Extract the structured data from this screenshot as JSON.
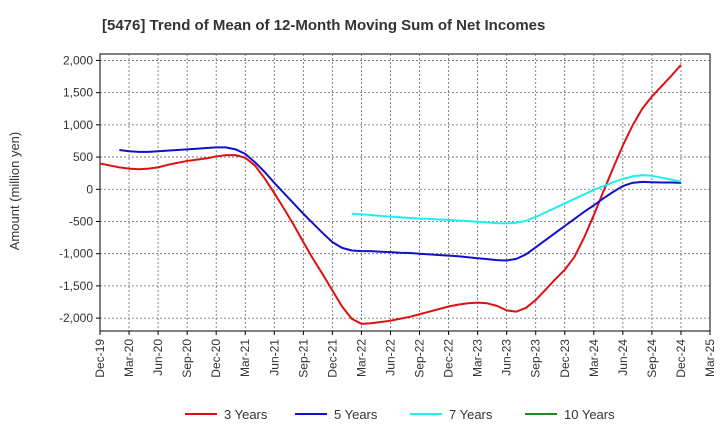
{
  "chart_data": {
    "type": "line",
    "title": "[5476]  Trend of Mean of 12-Month Moving Sum of Net Incomes",
    "ylabel": "Amount (million yen)",
    "xlabel": "",
    "ylim": [
      -2200,
      2100
    ],
    "yticks": [
      2000,
      1500,
      1000,
      500,
      0,
      -500,
      -1000,
      -1500,
      -2000
    ],
    "ytick_labels": [
      "2,000",
      "1,500",
      "1,000",
      "500",
      "0",
      "-500",
      "-1,000",
      "-1,500",
      "-2,000"
    ],
    "xtick_labels": [
      "Dec-19",
      "Mar-20",
      "Jun-20",
      "Sep-20",
      "Dec-20",
      "Mar-21",
      "Jun-21",
      "Sep-21",
      "Dec-21",
      "Mar-22",
      "Jun-22",
      "Sep-22",
      "Dec-22",
      "Mar-23",
      "Jun-23",
      "Sep-23",
      "Dec-23",
      "Mar-24",
      "Jun-24",
      "Sep-24",
      "Dec-24",
      "Mar-25"
    ],
    "grid": true,
    "legend_position": "bottom",
    "series": [
      {
        "name": "3 Years",
        "color": "#dd1111",
        "points": [
          [
            "Dec-19",
            400
          ],
          [
            "Jan-20",
            370
          ],
          [
            "Feb-20",
            340
          ],
          [
            "Mar-20",
            320
          ],
          [
            "Apr-20",
            310
          ],
          [
            "May-20",
            320
          ],
          [
            "Jun-20",
            340
          ],
          [
            "Jul-20",
            380
          ],
          [
            "Aug-20",
            410
          ],
          [
            "Sep-20",
            440
          ],
          [
            "Oct-20",
            460
          ],
          [
            "Nov-20",
            480
          ],
          [
            "Dec-20",
            510
          ],
          [
            "Jan-21",
            530
          ],
          [
            "Feb-21",
            530
          ],
          [
            "Mar-21",
            490
          ],
          [
            "Apr-21",
            370
          ],
          [
            "May-21",
            170
          ],
          [
            "Jun-21",
            -60
          ],
          [
            "Jul-21",
            -300
          ],
          [
            "Aug-21",
            -550
          ],
          [
            "Sep-21",
            -820
          ],
          [
            "Oct-21",
            -1080
          ],
          [
            "Nov-21",
            -1320
          ],
          [
            "Dec-21",
            -1570
          ],
          [
            "Jan-22",
            -1820
          ],
          [
            "Feb-22",
            -2010
          ],
          [
            "Mar-22",
            -2090
          ],
          [
            "Apr-22",
            -2080
          ],
          [
            "May-22",
            -2060
          ],
          [
            "Jun-22",
            -2040
          ],
          [
            "Jul-22",
            -2010
          ],
          [
            "Aug-22",
            -1980
          ],
          [
            "Sep-22",
            -1940
          ],
          [
            "Oct-22",
            -1900
          ],
          [
            "Nov-22",
            -1860
          ],
          [
            "Dec-22",
            -1820
          ],
          [
            "Jan-23",
            -1790
          ],
          [
            "Feb-23",
            -1770
          ],
          [
            "Mar-23",
            -1760
          ],
          [
            "Apr-23",
            -1770
          ],
          [
            "May-23",
            -1810
          ],
          [
            "Jun-23",
            -1880
          ],
          [
            "Jul-23",
            -1900
          ],
          [
            "Aug-23",
            -1840
          ],
          [
            "Sep-23",
            -1720
          ],
          [
            "Oct-23",
            -1560
          ],
          [
            "Nov-23",
            -1400
          ],
          [
            "Dec-23",
            -1250
          ],
          [
            "Jan-24",
            -1050
          ],
          [
            "Feb-24",
            -750
          ],
          [
            "Mar-24",
            -400
          ],
          [
            "Apr-24",
            -30
          ],
          [
            "May-24",
            330
          ],
          [
            "Jun-24",
            680
          ],
          [
            "Jul-24",
            990
          ],
          [
            "Aug-24",
            1250
          ],
          [
            "Sep-24",
            1440
          ],
          [
            "Oct-24",
            1600
          ],
          [
            "Nov-24",
            1760
          ],
          [
            "Dec-24",
            1930
          ]
        ]
      },
      {
        "name": "5 Years",
        "color": "#1111cc",
        "points": [
          [
            "Feb-20",
            610
          ],
          [
            "Mar-20",
            590
          ],
          [
            "Apr-20",
            580
          ],
          [
            "May-20",
            580
          ],
          [
            "Jun-20",
            590
          ],
          [
            "Jul-20",
            600
          ],
          [
            "Aug-20",
            610
          ],
          [
            "Sep-20",
            620
          ],
          [
            "Oct-20",
            630
          ],
          [
            "Nov-20",
            640
          ],
          [
            "Dec-20",
            650
          ],
          [
            "Jan-21",
            650
          ],
          [
            "Feb-21",
            620
          ],
          [
            "Mar-21",
            550
          ],
          [
            "Apr-21",
            420
          ],
          [
            "May-21",
            270
          ],
          [
            "Jun-21",
            100
          ],
          [
            "Jul-21",
            -60
          ],
          [
            "Aug-21",
            -220
          ],
          [
            "Sep-21",
            -380
          ],
          [
            "Oct-21",
            -530
          ],
          [
            "Nov-21",
            -680
          ],
          [
            "Dec-21",
            -820
          ],
          [
            "Jan-22",
            -910
          ],
          [
            "Feb-22",
            -950
          ],
          [
            "Mar-22",
            -960
          ],
          [
            "Apr-22",
            -960
          ],
          [
            "May-22",
            -970
          ],
          [
            "Jun-22",
            -975
          ],
          [
            "Jul-22",
            -985
          ],
          [
            "Aug-22",
            -990
          ],
          [
            "Sep-22",
            -1000
          ],
          [
            "Oct-22",
            -1010
          ],
          [
            "Nov-22",
            -1020
          ],
          [
            "Dec-22",
            -1030
          ],
          [
            "Jan-23",
            -1040
          ],
          [
            "Feb-23",
            -1055
          ],
          [
            "Mar-23",
            -1070
          ],
          [
            "Apr-23",
            -1085
          ],
          [
            "May-23",
            -1100
          ],
          [
            "Jun-23",
            -1105
          ],
          [
            "Jul-23",
            -1080
          ],
          [
            "Aug-23",
            -1010
          ],
          [
            "Sep-23",
            -900
          ],
          [
            "Oct-23",
            -790
          ],
          [
            "Nov-23",
            -680
          ],
          [
            "Dec-23",
            -570
          ],
          [
            "Jan-24",
            -460
          ],
          [
            "Feb-24",
            -350
          ],
          [
            "Mar-24",
            -250
          ],
          [
            "Apr-24",
            -140
          ],
          [
            "May-24",
            -40
          ],
          [
            "Jun-24",
            50
          ],
          [
            "Jul-24",
            100
          ],
          [
            "Aug-24",
            115
          ],
          [
            "Sep-24",
            110
          ],
          [
            "Oct-24",
            105
          ],
          [
            "Nov-24",
            105
          ],
          [
            "Dec-24",
            100
          ]
        ]
      },
      {
        "name": "7 Years",
        "color": "#22eeee",
        "points": [
          [
            "Feb-22",
            -380
          ],
          [
            "Mar-22",
            -390
          ],
          [
            "Apr-22",
            -400
          ],
          [
            "May-22",
            -415
          ],
          [
            "Jun-22",
            -425
          ],
          [
            "Jul-22",
            -435
          ],
          [
            "Aug-22",
            -445
          ],
          [
            "Sep-22",
            -455
          ],
          [
            "Oct-22",
            -460
          ],
          [
            "Nov-22",
            -470
          ],
          [
            "Dec-22",
            -475
          ],
          [
            "Jan-23",
            -485
          ],
          [
            "Feb-23",
            -495
          ],
          [
            "Mar-23",
            -505
          ],
          [
            "Apr-23",
            -515
          ],
          [
            "May-23",
            -525
          ],
          [
            "Jun-23",
            -530
          ],
          [
            "Jul-23",
            -520
          ],
          [
            "Aug-23",
            -490
          ],
          [
            "Sep-23",
            -430
          ],
          [
            "Oct-23",
            -360
          ],
          [
            "Nov-23",
            -290
          ],
          [
            "Dec-23",
            -220
          ],
          [
            "Jan-24",
            -150
          ],
          [
            "Feb-24",
            -80
          ],
          [
            "Mar-24",
            -10
          ],
          [
            "Apr-24",
            50
          ],
          [
            "May-24",
            110
          ],
          [
            "Jun-24",
            160
          ],
          [
            "Jul-24",
            200
          ],
          [
            "Aug-24",
            220
          ],
          [
            "Sep-24",
            210
          ],
          [
            "Oct-24",
            180
          ],
          [
            "Nov-24",
            150
          ],
          [
            "Dec-24",
            120
          ]
        ]
      },
      {
        "name": "10 Years",
        "color": "#228822",
        "points": []
      }
    ]
  }
}
